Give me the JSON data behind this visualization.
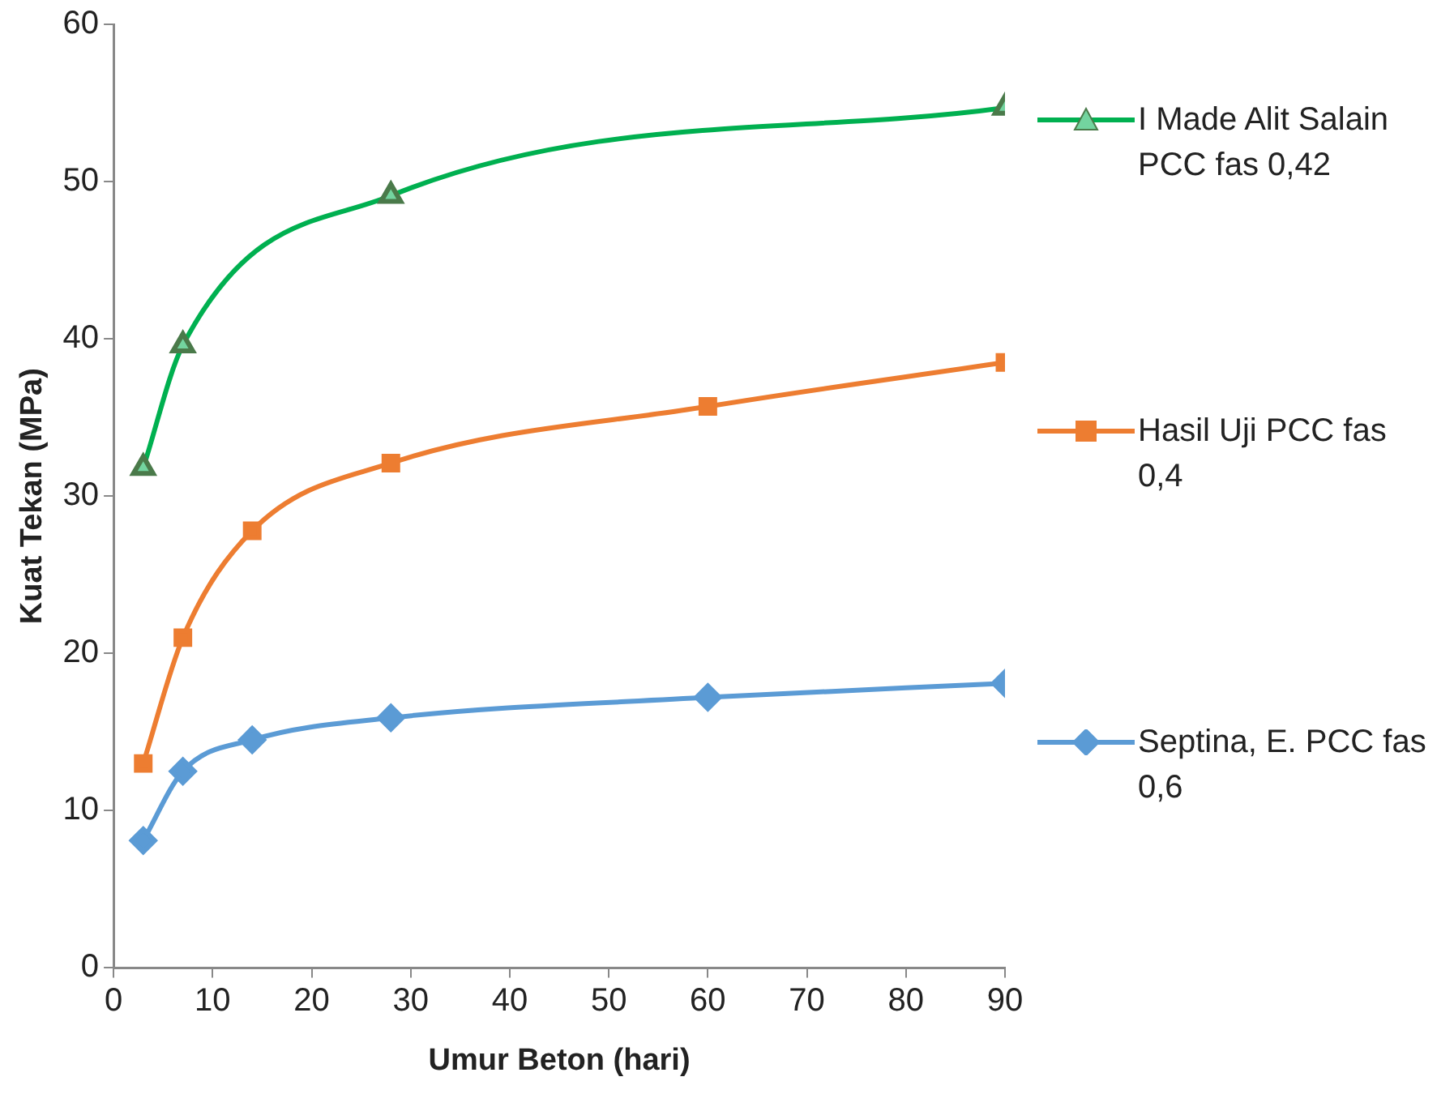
{
  "chart_data": {
    "type": "line",
    "xlabel": "Umur Beton (hari)",
    "ylabel": "Kuat Tekan (MPa)",
    "xlim": [
      0,
      90
    ],
    "xticks": [
      0,
      10,
      20,
      30,
      40,
      50,
      60,
      70,
      80,
      90
    ],
    "ylim": [
      0,
      60
    ],
    "yticks": [
      0,
      10,
      20,
      30,
      40,
      50,
      60
    ],
    "grid": false,
    "legend": "right",
    "series": [
      {
        "name": "I Made Alit Salain PCC fas 0,42",
        "color": "#00b050",
        "marker": "triangle",
        "x": [
          3,
          7,
          28,
          90
        ],
        "values": [
          31.8,
          39.6,
          49.1,
          54.7
        ]
      },
      {
        "name": "Hasil Uji PCC fas 0,4",
        "color": "#ed7d31",
        "marker": "square",
        "x": [
          3,
          7,
          14,
          28,
          60,
          90
        ],
        "values": [
          13,
          21,
          27.8,
          32.1,
          35.7,
          38.5
        ]
      },
      {
        "name": "Septina, E. PCC fas 0,6",
        "color": "#5b9bd5",
        "marker": "diamond",
        "x": [
          3,
          7,
          14,
          28,
          60,
          90
        ],
        "values": [
          8.1,
          12.5,
          14.5,
          15.9,
          17.2,
          18.1
        ]
      }
    ]
  }
}
